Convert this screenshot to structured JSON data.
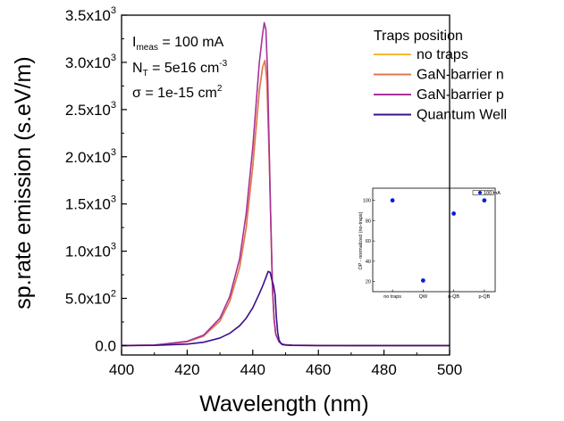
{
  "chart_data": [
    {
      "type": "line",
      "xlabel": "Wavelength (nm)",
      "ylabel": "sp.rate emission (s.eV/m)",
      "xlim": [
        400,
        500
      ],
      "ylim": [
        -100,
        3500
      ],
      "x_ticks": [
        "400",
        "420",
        "440",
        "460",
        "480",
        "500"
      ],
      "y_ticks": [
        {
          "value": 0,
          "mantissa": "0.0",
          "exponent": ""
        },
        {
          "value": 500,
          "mantissa": "5.0x10",
          "exponent": "2"
        },
        {
          "value": 1000,
          "mantissa": "1.0x10",
          "exponent": "3"
        },
        {
          "value": 1500,
          "mantissa": "1.5x10",
          "exponent": "3"
        },
        {
          "value": 2000,
          "mantissa": "2.0x10",
          "exponent": "3"
        },
        {
          "value": 2500,
          "mantissa": "2.5x10",
          "exponent": "3"
        },
        {
          "value": 3000,
          "mantissa": "3.0x10",
          "exponent": "3"
        },
        {
          "value": 3500,
          "mantissa": "3.5x10",
          "exponent": "3"
        }
      ],
      "annotations": {
        "line1": {
          "base": "I",
          "sub": "meas",
          "rest": " = 100 mA"
        },
        "line2": {
          "base": "N",
          "sub": "T",
          "rest": " = 5e16 cm",
          "sup": "-3"
        },
        "line3": {
          "base": "σ = 1e-15 cm",
          "sup": "2"
        }
      },
      "legend": {
        "title": "Traps position",
        "position": "top-right"
      },
      "series": [
        {
          "name": "no traps",
          "color": "#f5b836",
          "x": [
            400,
            410,
            420,
            425,
            430,
            433,
            436,
            438,
            440,
            441,
            442,
            443,
            443.7,
            444.3,
            445,
            445.5,
            446,
            446.5,
            447,
            448,
            449,
            450,
            452,
            455,
            460,
            470,
            500
          ],
          "y": [
            0,
            5,
            40,
            100,
            260,
            470,
            830,
            1250,
            1900,
            2300,
            2700,
            2950,
            3020,
            2800,
            2000,
            1300,
            600,
            280,
            120,
            40,
            15,
            8,
            4,
            2,
            1,
            0,
            0
          ]
        },
        {
          "name": "GaN-barrier n",
          "color": "#e07752",
          "x": [
            400,
            410,
            420,
            425,
            430,
            433,
            436,
            438,
            440,
            441,
            442,
            443,
            443.7,
            444.3,
            445,
            445.5,
            446,
            446.5,
            447,
            448,
            449,
            450,
            452,
            455,
            460,
            470,
            500
          ],
          "y": [
            0,
            5,
            40,
            100,
            260,
            470,
            830,
            1250,
            1900,
            2300,
            2700,
            2950,
            3020,
            2800,
            2000,
            1300,
            600,
            280,
            120,
            40,
            15,
            8,
            4,
            2,
            1,
            0,
            0
          ]
        },
        {
          "name": "GaN-barrier p",
          "color": "#a8329a",
          "x": [
            400,
            410,
            420,
            425,
            430,
            433,
            436,
            438,
            440,
            441,
            442,
            443,
            443.5,
            444,
            444.5,
            445,
            445.5,
            446,
            446.5,
            447,
            448,
            449,
            450,
            452,
            455,
            460,
            470,
            500
          ],
          "y": [
            0,
            5,
            45,
            110,
            290,
            520,
            920,
            1400,
            2100,
            2550,
            3000,
            3300,
            3420,
            3350,
            2900,
            2100,
            1300,
            620,
            280,
            120,
            40,
            15,
            8,
            4,
            2,
            1,
            0,
            0
          ]
        },
        {
          "name": "Quantum Well",
          "color": "#3b0f8c",
          "x": [
            400,
            410,
            420,
            425,
            430,
            433,
            436,
            438,
            440,
            442,
            443,
            444,
            444.7,
            445.3,
            445.8,
            446.3,
            446.8,
            447.2,
            447.6,
            448,
            448.5,
            449,
            450,
            452,
            455,
            460,
            470,
            500
          ],
          "y": [
            0,
            2,
            15,
            35,
            80,
            130,
            210,
            290,
            400,
            550,
            630,
            720,
            785,
            775,
            700,
            640,
            540,
            300,
            140,
            60,
            25,
            10,
            5,
            2,
            1,
            0,
            0,
            0
          ]
        }
      ]
    },
    {
      "type": "scatter",
      "ylabel": "OP - normalized (no-traps)",
      "categories": [
        "no traps",
        "QW",
        "n-QB",
        "p-QB"
      ],
      "ylim": [
        10,
        112
      ],
      "y_ticks": [
        "20",
        "40",
        "60",
        "80",
        "100"
      ],
      "legend": {
        "label": "100 mA",
        "position": "top-right"
      },
      "series": [
        {
          "name": "100 mA",
          "color": "#0a1ed6",
          "values": [
            100,
            21,
            87,
            100
          ]
        }
      ]
    }
  ]
}
